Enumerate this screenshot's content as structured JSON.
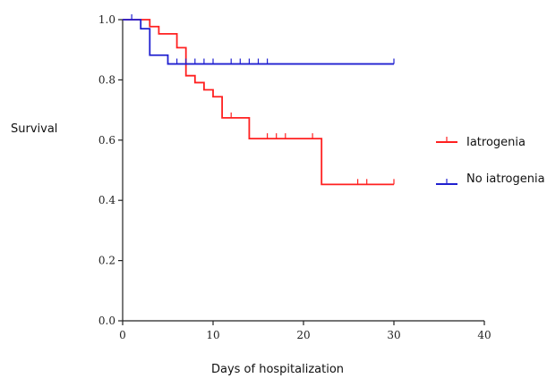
{
  "chart_data": {
    "type": "line",
    "subtype": "kaplan-meier survival curve",
    "ylabel": "Survival",
    "xlabel": "Days of hospitalization",
    "xlim": [
      0,
      40
    ],
    "ylim": [
      0,
      1.0
    ],
    "x_ticks": [
      0,
      10,
      20,
      30,
      40
    ],
    "y_ticks": [
      "0.0",
      "0.2",
      "0.4",
      "0.6",
      "0.8",
      "1.0"
    ],
    "grid": false,
    "legend_position": "right",
    "series": [
      {
        "name": "Iatrogenia",
        "color": "#ff2020",
        "steps": [
          [
            0,
            1.0
          ],
          [
            3,
            0.977
          ],
          [
            4,
            0.953
          ],
          [
            6,
            0.907
          ],
          [
            7,
            0.814
          ],
          [
            8,
            0.791
          ],
          [
            9,
            0.767
          ],
          [
            10,
            0.744
          ],
          [
            11,
            0.674
          ],
          [
            14,
            0.605
          ],
          [
            22,
            0.453
          ],
          [
            30,
            0.453
          ]
        ],
        "censored": [
          12,
          16,
          17,
          18,
          21,
          26,
          27,
          30
        ]
      },
      {
        "name": "No iatrogenia",
        "color": "#2020d0",
        "steps": [
          [
            0,
            1.0
          ],
          [
            2,
            0.97
          ],
          [
            3,
            0.882
          ],
          [
            5,
            0.853
          ],
          [
            30,
            0.853
          ]
        ],
        "censored": [
          1,
          6,
          7,
          8,
          9,
          10,
          12,
          13,
          14,
          15,
          16,
          30
        ]
      }
    ]
  }
}
